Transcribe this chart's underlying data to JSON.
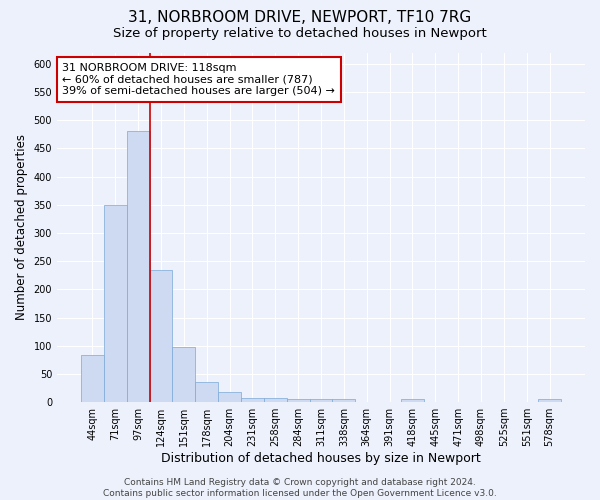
{
  "title_line1": "31, NORBROOM DRIVE, NEWPORT, TF10 7RG",
  "title_line2": "Size of property relative to detached houses in Newport",
  "xlabel": "Distribution of detached houses by size in Newport",
  "ylabel": "Number of detached properties",
  "categories": [
    "44sqm",
    "71sqm",
    "97sqm",
    "124sqm",
    "151sqm",
    "178sqm",
    "204sqm",
    "231sqm",
    "258sqm",
    "284sqm",
    "311sqm",
    "338sqm",
    "364sqm",
    "391sqm",
    "418sqm",
    "445sqm",
    "471sqm",
    "498sqm",
    "525sqm",
    "551sqm",
    "578sqm"
  ],
  "values": [
    83,
    350,
    480,
    235,
    98,
    35,
    18,
    8,
    8,
    5,
    5,
    5,
    0,
    0,
    5,
    0,
    0,
    0,
    0,
    0,
    5
  ],
  "bar_color": "#cddaf2",
  "bar_edge_color": "#7aa8d8",
  "background_color": "#edf1fb",
  "grid_color": "#ffffff",
  "red_line_index": 3,
  "annotation_line1": "31 NORBROOM DRIVE: 118sqm",
  "annotation_line2": "← 60% of detached houses are smaller (787)",
  "annotation_line3": "39% of semi-detached houses are larger (504) →",
  "annotation_box_facecolor": "#ffffff",
  "annotation_box_edgecolor": "#cc0000",
  "ylim": [
    0,
    620
  ],
  "yticks": [
    0,
    50,
    100,
    150,
    200,
    250,
    300,
    350,
    400,
    450,
    500,
    550,
    600
  ],
  "footer_text": "Contains HM Land Registry data © Crown copyright and database right 2024.\nContains public sector information licensed under the Open Government Licence v3.0.",
  "title_fontsize": 11,
  "subtitle_fontsize": 9.5,
  "ylabel_fontsize": 8.5,
  "xlabel_fontsize": 9,
  "tick_fontsize": 7,
  "annotation_fontsize": 8,
  "footer_fontsize": 6.5
}
